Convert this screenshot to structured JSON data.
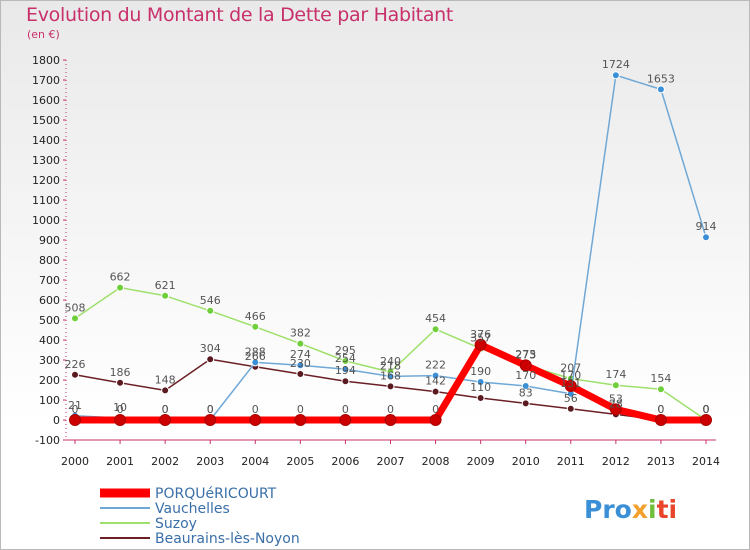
{
  "title": "Evolution du Montant de la Dette par Habitant",
  "unit": "(en €)",
  "logo": {
    "letters": [
      "P",
      "r",
      "o",
      "x",
      "i",
      "t",
      "i"
    ],
    "colors": [
      "#3a8fd6",
      "#3a8fd6",
      "#3a8fd6",
      "#f2a12c",
      "#6fbf3a",
      "#e8452c",
      "#e8452c"
    ]
  },
  "chart_data": {
    "type": "line",
    "x": [
      "2000",
      "2001",
      "2002",
      "2003",
      "2004",
      "2005",
      "2006",
      "2007",
      "2008",
      "2009",
      "2010",
      "2011",
      "2012",
      "2013",
      "2014"
    ],
    "ylim": [
      -100,
      1800
    ],
    "yticks": [
      -100,
      0,
      100,
      200,
      300,
      400,
      500,
      600,
      700,
      800,
      900,
      1000,
      1100,
      1200,
      1300,
      1400,
      1500,
      1600,
      1700,
      1800
    ],
    "grid": false,
    "legend_position": "bottom-left",
    "series": [
      {
        "name": "PORQUéRICOURT",
        "color": "#ff0000",
        "marker": "#cc0000",
        "values": [
          0,
          0,
          0,
          0,
          0,
          0,
          0,
          0,
          0,
          376,
          273,
          170,
          53,
          0,
          0
        ],
        "labels": [
          "0",
          "0",
          "0",
          "0",
          "0",
          "0",
          "0",
          "0",
          "0",
          "376",
          "273",
          "170",
          "53",
          "0",
          "0"
        ]
      },
      {
        "name": "Vauchelles",
        "color": "#6fa8d6",
        "marker": "#3a8fd6",
        "values": [
          21,
          10,
          0,
          0,
          288,
          274,
          254,
          218,
          222,
          190,
          170,
          131,
          1724,
          1653,
          914
        ],
        "labels": [
          "21",
          "10",
          "0",
          "0",
          "288",
          "274",
          "254",
          "218",
          "222",
          "190",
          "170",
          "131",
          "1724",
          "1653",
          "914"
        ]
      },
      {
        "name": "Suzoy",
        "color": "#9ee06b",
        "marker": "#6fcf3a",
        "values": [
          508,
          662,
          621,
          546,
          466,
          382,
          295,
          240,
          454,
          357,
          275,
          207,
          174,
          154,
          0
        ],
        "labels": [
          "508",
          "662",
          "621",
          "546",
          "466",
          "382",
          "295",
          "240",
          "454",
          "357",
          "275",
          "207",
          "174",
          "154",
          "0"
        ]
      },
      {
        "name": "Beaurains-lès-Noyon",
        "color": "#6b1f25",
        "marker": "#5a1a20",
        "values": [
          226,
          186,
          148,
          304,
          266,
          230,
          194,
          168,
          142,
          110,
          83,
          56,
          28,
          0,
          0
        ],
        "labels": [
          "226",
          "186",
          "148",
          "304",
          "266",
          "230",
          "194",
          "168",
          "142",
          "110",
          "83",
          "56",
          "28",
          "0",
          "0"
        ]
      }
    ]
  }
}
